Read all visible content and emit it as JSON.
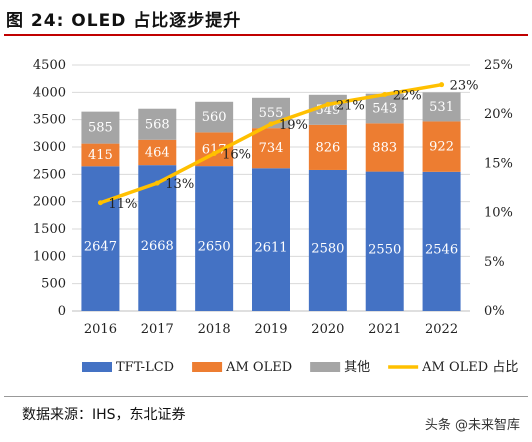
{
  "title": "图 24:  OLED 占比逐步提升",
  "source": "数据来源：IHS，东北证券",
  "watermark": "头条 @未来智库",
  "chart_data": {
    "type": "bar",
    "stacked": true,
    "categories": [
      "2016",
      "2017",
      "2018",
      "2019",
      "2020",
      "2021",
      "2022"
    ],
    "series": [
      {
        "name": "TFT-LCD",
        "color": "#4472C4",
        "values": [
          2647,
          2668,
          2650,
          2611,
          2580,
          2550,
          2546
        ]
      },
      {
        "name": "AM OLED",
        "color": "#ED7D31",
        "values": [
          415,
          464,
          617,
          734,
          826,
          883,
          922
        ]
      },
      {
        "name": "其他",
        "color": "#A5A5A5",
        "values": [
          585,
          568,
          560,
          555,
          549,
          543,
          531
        ]
      }
    ],
    "line_series": {
      "name": "AM OLED 占比",
      "color": "#FFC000",
      "axis": "right",
      "values": [
        11,
        13,
        16,
        19,
        21,
        22,
        23
      ],
      "labels": [
        "11%",
        "13%",
        "16%",
        "19%",
        "21%",
        "22%",
        "23%"
      ]
    },
    "ylim": [
      0,
      4500
    ],
    "yticks": [
      "0",
      "500",
      "1000",
      "1500",
      "2000",
      "2500",
      "3000",
      "3500",
      "4000",
      "4500"
    ],
    "y2lim": [
      0,
      25
    ],
    "y2ticks": [
      "0%",
      "5%",
      "10%",
      "15%",
      "20%",
      "25%"
    ],
    "grid": true,
    "legend": "bottom"
  }
}
